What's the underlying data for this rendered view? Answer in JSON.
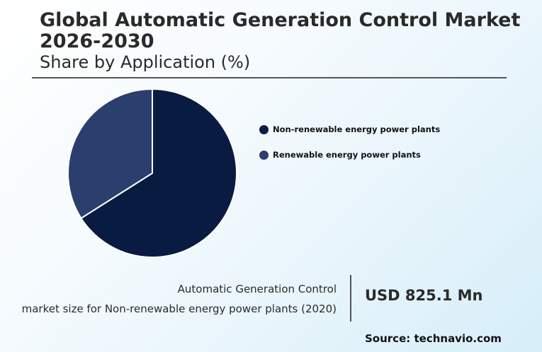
{
  "header": {
    "title": "Global Automatic Generation Control Market 2026-2030",
    "subtitle": "Share by Application (%)"
  },
  "chart_data": {
    "type": "pie",
    "categories": [
      "Non-renewable energy power plants",
      "Renewable energy power plants"
    ],
    "values": [
      66,
      34
    ],
    "colors": [
      "#0a1b42",
      "#2b3f6e"
    ],
    "legend_position": "right"
  },
  "stat": {
    "label_line1": "Automatic Generation Control",
    "label_line2": "market size for Non-renewable energy power plants (2020)",
    "value": "USD 825.1 Mn"
  },
  "source": "Source: technavio.com"
}
